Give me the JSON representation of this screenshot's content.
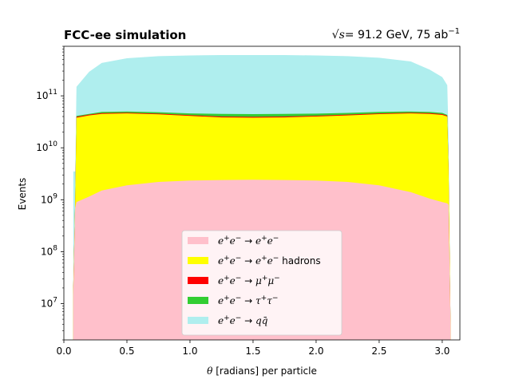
{
  "chart_data": {
    "type": "area",
    "title_left": "FCC-ee simulation",
    "title_right_prefix": "√s",
    "title_right_value": "= 91.2 GeV, 75 ab",
    "title_right_exponent": "−1",
    "xlabel_symbol": "θ",
    "xlabel_text": " [radians] per particle",
    "ylabel": "Events",
    "xlim": [
      0.0,
      3.14
    ],
    "ylim": [
      2000000.0,
      900000000000.0
    ],
    "yscale": "log",
    "x_ticks": [
      0.0,
      0.5,
      1.0,
      1.5,
      2.0,
      2.5,
      3.0
    ],
    "x_tick_labels": [
      "0.0",
      "0.5",
      "1.0",
      "1.5",
      "2.0",
      "2.5",
      "3.0"
    ],
    "y_tick_exponents": [
      7,
      8,
      9,
      10,
      11
    ],
    "y_tick_base": "10",
    "legend_position": "lower center",
    "x_range": [
      0.075,
      3.066
    ],
    "x": [
      0.075,
      0.09,
      0.1,
      0.2,
      0.3,
      0.5,
      0.75,
      1.0,
      1.25,
      1.5,
      1.75,
      2.0,
      2.25,
      2.5,
      2.75,
      2.9,
      3.0,
      3.04,
      3.05,
      3.066
    ],
    "series": [
      {
        "name": "e⁺e⁻ → e⁺e⁻",
        "color": "#ffc0cb",
        "cumulative_top": [
          15000000.0,
          700000000.0,
          900000000.0,
          1150000000.0,
          1500000000.0,
          1900000000.0,
          2200000000.0,
          2350000000.0,
          2400000000.0,
          2420000000.0,
          2400000000.0,
          2350000000.0,
          2200000000.0,
          1900000000.0,
          1400000000.0,
          1050000000.0,
          900000000.0,
          850000000.0,
          800000000.0,
          4000000.0
        ]
      },
      {
        "name": "e⁺e⁻ → e⁺e⁻ hadrons",
        "color": "#ffff00",
        "cumulative_top": [
          20000000.0,
          900000000.0,
          38000000000.0,
          42000000000.0,
          45000000000.0,
          46000000000.0,
          44000000000.0,
          41000000000.0,
          38500000000.0,
          38000000000.0,
          38500000000.0,
          40000000000.0,
          42000000000.0,
          44500000000.0,
          46000000000.0,
          45000000000.0,
          43000000000.0,
          40000000000.0,
          4200000000.0,
          4000000.0
        ]
      },
      {
        "name": "e⁺e⁻ → μ⁺μ⁻",
        "color": "#ff0000",
        "cumulative_top": [
          21000000.0,
          920000000.0,
          39500000000.0,
          43500000000.0,
          46500000000.0,
          47500000000.0,
          45500000000.0,
          42500000000.0,
          40000000000.0,
          39500000000.0,
          40000000000.0,
          41500000000.0,
          43500000000.0,
          46000000000.0,
          47500000000.0,
          46500000000.0,
          44500000000.0,
          41500000000.0,
          4300000000.0,
          4000000.0
        ]
      },
      {
        "name": "e⁺e⁻ → τ⁺τ⁻",
        "color": "#32cd32",
        "cumulative_top": [
          22000000.0,
          950000000.0,
          41000000000.0,
          45000000000.0,
          49000000000.0,
          50000000000.0,
          48500000000.0,
          46000000000.0,
          45000000000.0,
          44500000000.0,
          45000000000.0,
          45500000000.0,
          47000000000.0,
          49000000000.0,
          50000000000.0,
          49000000000.0,
          47000000000.0,
          43000000000.0,
          4400000000.0,
          4000000.0
        ]
      },
      {
        "name": "e⁺e⁻ → qq̄",
        "color": "#afeeee",
        "cumulative_top": [
          3500000000.0,
          3500000000.0,
          150000000000.0,
          290000000000.0,
          430000000000.0,
          530000000000.0,
          580000000000.0,
          600000000000.0,
          610000000000.0,
          610000000000.0,
          610000000000.0,
          600000000000.0,
          580000000000.0,
          540000000000.0,
          460000000000.0,
          320000000000.0,
          230000000000.0,
          160000000000.0,
          16000000000.0,
          4000000.0
        ]
      }
    ]
  },
  "legend": {
    "items": [
      {
        "pre": "e",
        "sup1": "+",
        "mid": "e",
        "sup2": "−",
        "arrow": " → ",
        "post": "e",
        "sup3": "+",
        "post2": "e",
        "sup4": "−",
        "suffix": ""
      },
      {
        "pre": "e",
        "sup1": "+",
        "mid": "e",
        "sup2": "−",
        "arrow": " → ",
        "post": "e",
        "sup3": "+",
        "post2": "e",
        "sup4": "−",
        "suffix": " hadrons"
      },
      {
        "pre": "e",
        "sup1": "+",
        "mid": "e",
        "sup2": "−",
        "arrow": " → ",
        "post": "μ",
        "sup3": "+",
        "post2": "μ",
        "sup4": "−",
        "suffix": ""
      },
      {
        "pre": "e",
        "sup1": "+",
        "mid": "e",
        "sup2": "−",
        "arrow": " → ",
        "post": "τ",
        "sup3": "+",
        "post2": "τ",
        "sup4": "−",
        "suffix": ""
      },
      {
        "pre": "e",
        "sup1": "+",
        "mid": "e",
        "sup2": "−",
        "arrow": " → ",
        "post": "q",
        "sup3": "",
        "post2": "q̄",
        "sup4": "",
        "suffix": ""
      }
    ]
  }
}
